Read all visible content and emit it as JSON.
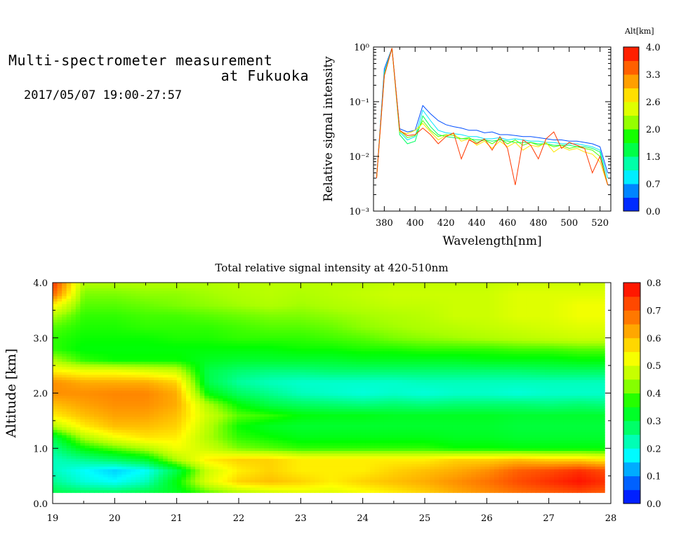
{
  "header": {
    "title_line1": "Multi-spectrometer measurement",
    "title_line2": "at Fukuoka",
    "period": "2017/05/07 19:00-27:57"
  },
  "colors": {
    "ramp": [
      "#0000ff",
      "#0073ff",
      "#00ffff",
      "#00ff73",
      "#00ff00",
      "#aaff00",
      "#ffff00",
      "#ffaa00",
      "#ff5500",
      "#ff0000"
    ]
  },
  "chart_data": [
    {
      "type": "line",
      "xlabel": "Wavelength[nm]",
      "ylabel": "Relative signal intensity",
      "xlim": [
        373,
        527
      ],
      "ylim": [
        0.001,
        1
      ],
      "yscale": "log",
      "x_ticks": [
        "380",
        "400",
        "420",
        "440",
        "460",
        "480",
        "500",
        "520"
      ],
      "y_ticks": [
        "10⁻³",
        "10⁻²",
        "10⁻¹",
        "10⁰"
      ],
      "colorbar": {
        "title": "Alt[km]",
        "ticks": [
          "0.0",
          "0.7",
          "1.3",
          "2.0",
          "2.6",
          "3.3",
          "4.0"
        ],
        "range": [
          0,
          4
        ]
      },
      "x": [
        375,
        380,
        385,
        390,
        395,
        400,
        405,
        410,
        415,
        420,
        425,
        430,
        435,
        440,
        445,
        450,
        455,
        460,
        465,
        470,
        475,
        480,
        485,
        490,
        495,
        500,
        505,
        510,
        515,
        520,
        525
      ],
      "series": [
        {
          "altitude": 0.3,
          "values": [
            0.004,
            0.4,
            0.95,
            0.032,
            0.028,
            0.03,
            0.085,
            0.06,
            0.045,
            0.038,
            0.035,
            0.033,
            0.03,
            0.03,
            0.027,
            0.028,
            0.025,
            0.025,
            0.024,
            0.023,
            0.023,
            0.022,
            0.021,
            0.02,
            0.02,
            0.019,
            0.019,
            0.018,
            0.017,
            0.015,
            0.005
          ]
        },
        {
          "altitude": 0.8,
          "values": [
            0.004,
            0.35,
            0.95,
            0.028,
            0.02,
            0.023,
            0.07,
            0.045,
            0.03,
            0.027,
            0.026,
            0.025,
            0.023,
            0.023,
            0.021,
            0.021,
            0.022,
            0.02,
            0.021,
            0.02,
            0.019,
            0.019,
            0.018,
            0.018,
            0.017,
            0.017,
            0.017,
            0.016,
            0.015,
            0.013,
            0.004
          ]
        },
        {
          "altitude": 1.4,
          "values": [
            0.004,
            0.32,
            0.95,
            0.025,
            0.017,
            0.019,
            0.055,
            0.035,
            0.025,
            0.023,
            0.022,
            0.021,
            0.021,
            0.02,
            0.02,
            0.019,
            0.02,
            0.019,
            0.018,
            0.018,
            0.018,
            0.017,
            0.017,
            0.016,
            0.016,
            0.016,
            0.015,
            0.015,
            0.014,
            0.012,
            0.003
          ]
        },
        {
          "altitude": 2.0,
          "values": [
            0.004,
            0.3,
            0.95,
            0.03,
            0.022,
            0.024,
            0.045,
            0.03,
            0.023,
            0.025,
            0.024,
            0.021,
            0.022,
            0.018,
            0.02,
            0.017,
            0.021,
            0.017,
            0.02,
            0.016,
            0.018,
            0.016,
            0.017,
            0.015,
            0.016,
            0.014,
            0.015,
            0.014,
            0.013,
            0.01,
            0.003
          ]
        },
        {
          "altitude": 2.8,
          "values": [
            0.004,
            0.3,
            0.95,
            0.028,
            0.026,
            0.03,
            0.04,
            0.028,
            0.02,
            0.024,
            0.026,
            0.019,
            0.021,
            0.016,
            0.019,
            0.014,
            0.019,
            0.015,
            0.018,
            0.013,
            0.016,
            0.015,
            0.018,
            0.012,
            0.015,
            0.013,
            0.014,
            0.012,
            0.011,
            0.008,
            0.003
          ]
        },
        {
          "altitude": 3.7,
          "values": [
            0.004,
            0.3,
            0.95,
            0.03,
            0.024,
            0.025,
            0.033,
            0.025,
            0.017,
            0.023,
            0.027,
            0.009,
            0.02,
            0.017,
            0.021,
            0.013,
            0.023,
            0.014,
            0.003,
            0.02,
            0.016,
            0.009,
            0.021,
            0.028,
            0.014,
            0.018,
            0.016,
            0.014,
            0.005,
            0.01,
            0.003
          ]
        }
      ]
    },
    {
      "type": "heatmap",
      "title": "Total relative signal intensity at 420-510nm",
      "ylabel": "Altitude [km]",
      "xlim": [
        19,
        28
      ],
      "ylim": [
        0,
        4
      ],
      "x_ticks": [
        "19",
        "20",
        "21",
        "22",
        "23",
        "24",
        "25",
        "26",
        "27",
        "28"
      ],
      "y_ticks": [
        "0.0",
        "1.0",
        "2.0",
        "3.0",
        "4.0"
      ],
      "colorbar": {
        "ticks": [
          "0.0",
          "0.1",
          "0.2",
          "0.3",
          "0.4",
          "0.5",
          "0.6",
          "0.7",
          "0.8"
        ],
        "range": [
          0,
          0.8
        ]
      },
      "time_hours": [
        19.0,
        19.5,
        20.0,
        20.5,
        21.0,
        21.5,
        22.0,
        22.5,
        23.0,
        23.5,
        24.0,
        24.5,
        25.0,
        25.5,
        26.0,
        26.5,
        27.0,
        27.5,
        27.9
      ],
      "altitude_km": [
        0.2,
        0.4,
        0.6,
        0.8,
        1.0,
        1.2,
        1.4,
        1.6,
        1.8,
        2.0,
        2.2,
        2.4,
        2.6,
        2.8,
        3.0,
        3.2,
        3.4,
        3.6,
        3.8,
        4.0
      ],
      "values": [
        [
          0.3,
          0.28,
          0.28,
          0.3,
          0.33,
          0.4,
          0.45,
          0.48,
          0.5,
          0.5,
          0.52,
          0.55,
          0.58,
          0.62,
          0.65,
          0.68,
          0.7,
          0.72,
          0.7
        ],
        [
          0.25,
          0.2,
          0.18,
          0.22,
          0.35,
          0.5,
          0.58,
          0.6,
          0.58,
          0.55,
          0.58,
          0.6,
          0.62,
          0.65,
          0.68,
          0.72,
          0.75,
          0.78,
          0.75
        ],
        [
          0.22,
          0.18,
          0.15,
          0.18,
          0.3,
          0.48,
          0.55,
          0.58,
          0.55,
          0.55,
          0.55,
          0.58,
          0.6,
          0.62,
          0.65,
          0.7,
          0.72,
          0.75,
          0.72
        ],
        [
          0.22,
          0.25,
          0.28,
          0.32,
          0.45,
          0.55,
          0.58,
          0.58,
          0.55,
          0.55,
          0.55,
          0.55,
          0.55,
          0.58,
          0.58,
          0.6,
          0.58,
          0.58,
          0.55
        ],
        [
          0.25,
          0.35,
          0.4,
          0.45,
          0.52,
          0.48,
          0.42,
          0.4,
          0.38,
          0.38,
          0.38,
          0.38,
          0.38,
          0.36,
          0.36,
          0.35,
          0.35,
          0.35,
          0.35
        ],
        [
          0.3,
          0.45,
          0.52,
          0.56,
          0.55,
          0.45,
          0.38,
          0.36,
          0.34,
          0.34,
          0.34,
          0.34,
          0.34,
          0.33,
          0.33,
          0.32,
          0.32,
          0.32,
          0.32
        ],
        [
          0.45,
          0.55,
          0.6,
          0.6,
          0.58,
          0.46,
          0.36,
          0.33,
          0.32,
          0.32,
          0.32,
          0.32,
          0.32,
          0.32,
          0.32,
          0.31,
          0.31,
          0.31,
          0.31
        ],
        [
          0.55,
          0.6,
          0.63,
          0.63,
          0.6,
          0.48,
          0.4,
          0.38,
          0.35,
          0.34,
          0.34,
          0.33,
          0.33,
          0.33,
          0.33,
          0.32,
          0.32,
          0.32,
          0.32
        ],
        [
          0.6,
          0.63,
          0.65,
          0.65,
          0.62,
          0.45,
          0.35,
          0.3,
          0.28,
          0.27,
          0.26,
          0.27,
          0.26,
          0.27,
          0.27,
          0.27,
          0.26,
          0.27,
          0.26
        ],
        [
          0.65,
          0.65,
          0.66,
          0.66,
          0.62,
          0.35,
          0.28,
          0.25,
          0.22,
          0.21,
          0.2,
          0.21,
          0.2,
          0.21,
          0.21,
          0.2,
          0.21,
          0.21,
          0.21
        ],
        [
          0.65,
          0.62,
          0.62,
          0.62,
          0.58,
          0.3,
          0.24,
          0.22,
          0.21,
          0.21,
          0.21,
          0.21,
          0.22,
          0.22,
          0.22,
          0.22,
          0.22,
          0.22,
          0.22
        ],
        [
          0.55,
          0.52,
          0.52,
          0.5,
          0.48,
          0.3,
          0.27,
          0.26,
          0.26,
          0.27,
          0.27,
          0.27,
          0.27,
          0.27,
          0.27,
          0.27,
          0.28,
          0.28,
          0.28
        ],
        [
          0.45,
          0.38,
          0.36,
          0.36,
          0.36,
          0.33,
          0.32,
          0.32,
          0.32,
          0.32,
          0.33,
          0.33,
          0.33,
          0.33,
          0.34,
          0.34,
          0.34,
          0.35,
          0.35
        ],
        [
          0.38,
          0.35,
          0.35,
          0.35,
          0.35,
          0.35,
          0.35,
          0.35,
          0.36,
          0.36,
          0.37,
          0.37,
          0.38,
          0.38,
          0.38,
          0.39,
          0.39,
          0.4,
          0.4
        ],
        [
          0.38,
          0.36,
          0.36,
          0.36,
          0.37,
          0.37,
          0.38,
          0.38,
          0.38,
          0.39,
          0.4,
          0.42,
          0.43,
          0.44,
          0.45,
          0.46,
          0.47,
          0.48,
          0.48
        ],
        [
          0.4,
          0.37,
          0.37,
          0.38,
          0.38,
          0.38,
          0.39,
          0.4,
          0.4,
          0.41,
          0.43,
          0.44,
          0.45,
          0.46,
          0.47,
          0.48,
          0.49,
          0.5,
          0.5
        ],
        [
          0.45,
          0.38,
          0.38,
          0.39,
          0.39,
          0.4,
          0.41,
          0.42,
          0.42,
          0.43,
          0.44,
          0.45,
          0.46,
          0.48,
          0.48,
          0.5,
          0.5,
          0.52,
          0.52
        ],
        [
          0.55,
          0.4,
          0.4,
          0.41,
          0.42,
          0.43,
          0.44,
          0.45,
          0.44,
          0.45,
          0.46,
          0.47,
          0.47,
          0.48,
          0.48,
          0.5,
          0.5,
          0.52,
          0.52
        ],
        [
          0.7,
          0.42,
          0.42,
          0.43,
          0.43,
          0.44,
          0.45,
          0.46,
          0.45,
          0.46,
          0.47,
          0.48,
          0.48,
          0.48,
          0.48,
          0.5,
          0.5,
          0.5,
          0.5
        ],
        [
          0.75,
          0.45,
          0.45,
          0.45,
          0.45,
          0.45,
          0.46,
          0.46,
          0.46,
          0.46,
          0.46,
          0.47,
          0.47,
          0.47,
          0.47,
          0.48,
          0.48,
          0.48,
          0.48
        ]
      ]
    }
  ]
}
